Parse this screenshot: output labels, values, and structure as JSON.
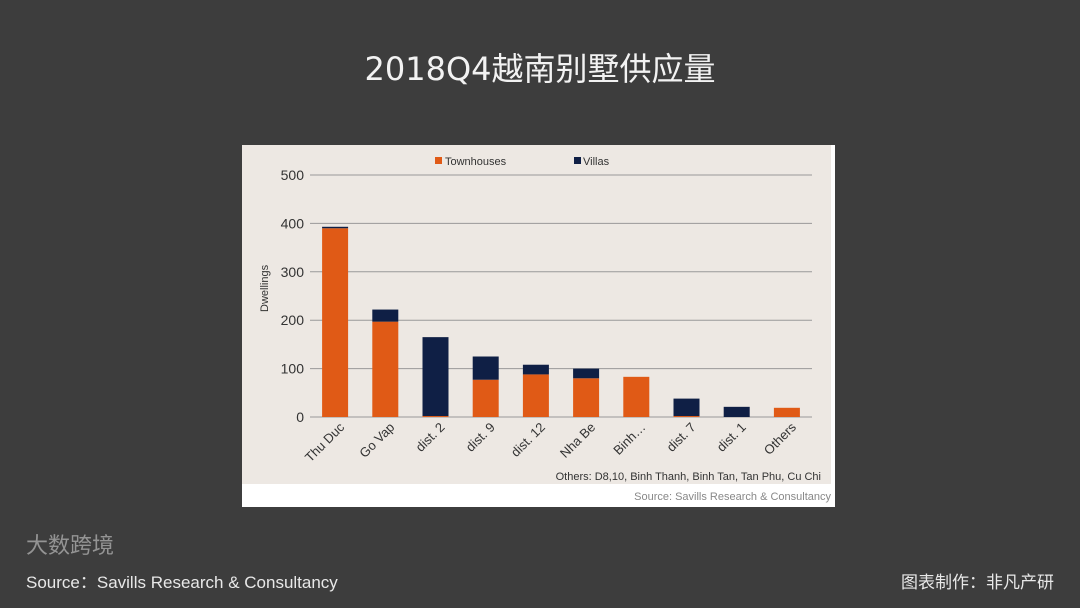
{
  "title": "2018Q4越南别墅供应量",
  "footer": {
    "source": "Source：Savills Research & Consultancy",
    "credit": "图表制作：非凡产研",
    "watermark": "大数跨境"
  },
  "colors": {
    "townhouses": "#e05a16",
    "villas": "#0f1f45",
    "plot_bg": "#ede8e3"
  },
  "chart_data": {
    "type": "bar",
    "stacked": true,
    "categories": [
      "Thu Duc",
      "Go Vap",
      "dist. 2",
      "dist. 9",
      "dist. 12",
      "Nha Be",
      "Binh…",
      "dist. 7",
      "dist. 1",
      "Others"
    ],
    "series": [
      {
        "name": "Townhouses",
        "values": [
          390,
          197,
          2,
          77,
          88,
          80,
          83,
          2,
          0,
          19
        ]
      },
      {
        "name": "Villas",
        "values": [
          3,
          25,
          163,
          48,
          20,
          20,
          0,
          36,
          21,
          0
        ]
      }
    ],
    "ylabel": "Dwellings",
    "ylim": [
      0,
      500
    ],
    "yticks": [
      0,
      100,
      200,
      300,
      400,
      500
    ],
    "grid": true,
    "legend": "top",
    "note": "Others: D8,10, Binh Thanh, Binh Tan, Tan Phu, Cu Chi",
    "source": "Source: Savills Research & Consultancy"
  }
}
